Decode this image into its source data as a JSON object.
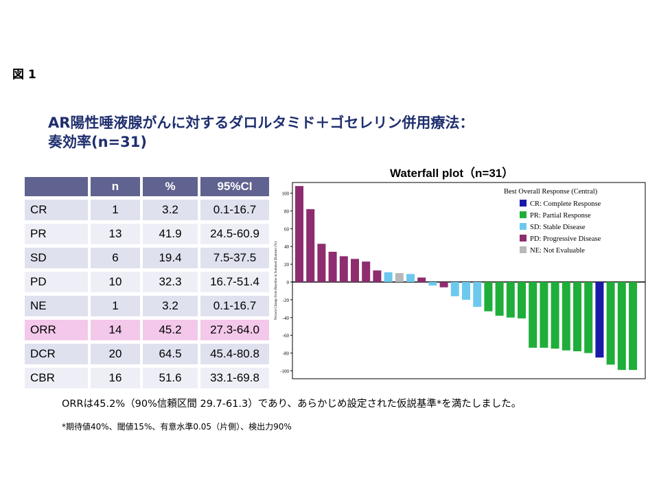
{
  "figure_label": "図 1",
  "title_line1": "AR陽性唾液腺がんに対するダロルタミド＋ゴセレリン併用療法：",
  "title_line2": "奏効率(n=31)",
  "table": {
    "headers": [
      "",
      "n",
      "%",
      "95%CI"
    ],
    "rows": [
      {
        "label": "CR",
        "n": "1",
        "pct": "3.2",
        "ci": "0.1-16.7"
      },
      {
        "label": "PR",
        "n": "13",
        "pct": "41.9",
        "ci": "24.5-60.9"
      },
      {
        "label": "SD",
        "n": "6",
        "pct": "19.4",
        "ci": "7.5-37.5"
      },
      {
        "label": "PD",
        "n": "10",
        "pct": "32.3",
        "ci": "16.7-51.4"
      },
      {
        "label": "NE",
        "n": "1",
        "pct": "3.2",
        "ci": "0.1-16.7"
      },
      {
        "label": "ORR",
        "n": "14",
        "pct": "45.2",
        "ci": "27.3-64.0",
        "highlight": true
      },
      {
        "label": "DCR",
        "n": "20",
        "pct": "64.5",
        "ci": "45.4-80.8"
      },
      {
        "label": "CBR",
        "n": "16",
        "pct": "51.6",
        "ci": "33.1-69.8"
      }
    ]
  },
  "chart_data": {
    "type": "bar",
    "title": "Waterfall plot（n=31）",
    "ylabel": "Percent Change from Baseline in Summed Diameter (%)",
    "xlabel": "",
    "ylim": [
      -110,
      110
    ],
    "yticks": [
      100,
      80,
      60,
      40,
      20,
      0,
      -20,
      -40,
      -60,
      -80,
      -100
    ],
    "legend_title": "Best Overall Response (Central)",
    "legend_position": "top-right",
    "legend": [
      {
        "key": "CR",
        "label": "CR: Complete Response",
        "color": "#1a1aa8"
      },
      {
        "key": "PR",
        "label": "PR: Partial Response",
        "color": "#1fae3a"
      },
      {
        "key": "SD",
        "label": "SD: Stable Disease",
        "color": "#6cc9ee"
      },
      {
        "key": "PD",
        "label": "PD: Progressive Disease",
        "color": "#8e2c70"
      },
      {
        "key": "NE",
        "label": "NE: Not Evaluable",
        "color": "#b8b8b8"
      }
    ],
    "values": [
      108,
      82,
      43,
      34,
      29,
      26,
      23,
      13,
      11,
      10,
      9,
      5,
      -4,
      -6,
      -16,
      -20,
      -28,
      -33,
      -38,
      -40,
      -41,
      -74,
      -74,
      -75,
      -77,
      -78,
      -80,
      -85,
      -93,
      -99,
      -99
    ],
    "categories": [
      "PD",
      "PD",
      "PD",
      "PD",
      "PD",
      "PD",
      "PD",
      "PD",
      "SD",
      "NE",
      "SD",
      "PD",
      "SD",
      "PD",
      "SD",
      "SD",
      "SD",
      "PR",
      "PR",
      "PR",
      "PR",
      "PR",
      "PR",
      "PR",
      "PR",
      "PR",
      "PR",
      "CR",
      "PR",
      "PR",
      "PR"
    ]
  },
  "note_main": "ORRは45.2%（90%信頼区間 29.7-61.3）であり、あらかじめ設定された仮説基準*を満たしました。",
  "note_sub": "*期待値40%、閾値15%、有意水準0.05（片側）、検出力90%"
}
